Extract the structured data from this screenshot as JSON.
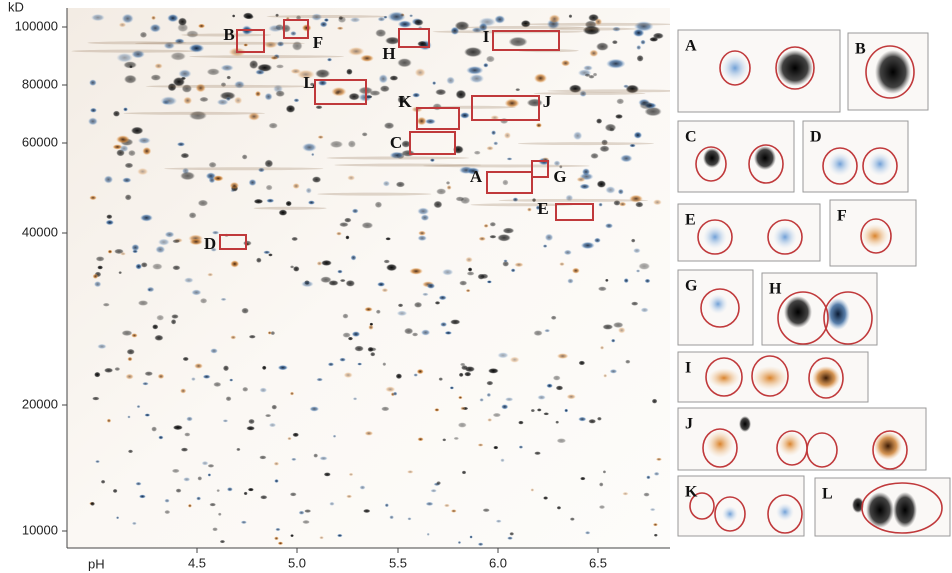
{
  "axes": {
    "y_title": "kD",
    "x_title": "pH",
    "y_ticks": [
      "100000",
      "80000",
      "60000",
      "40000",
      "20000",
      "10000"
    ],
    "x_ticks": [
      "4.5",
      "5.0",
      "5.5",
      "6.0",
      "6.5"
    ]
  },
  "gel_labels": [
    "B",
    "F",
    "H",
    "I",
    "L",
    "K",
    "J",
    "C",
    "A",
    "G",
    "E",
    "D"
  ],
  "panels": [
    "A",
    "B",
    "C",
    "D",
    "E",
    "F",
    "G",
    "H",
    "I",
    "J",
    "K",
    "L"
  ]
}
